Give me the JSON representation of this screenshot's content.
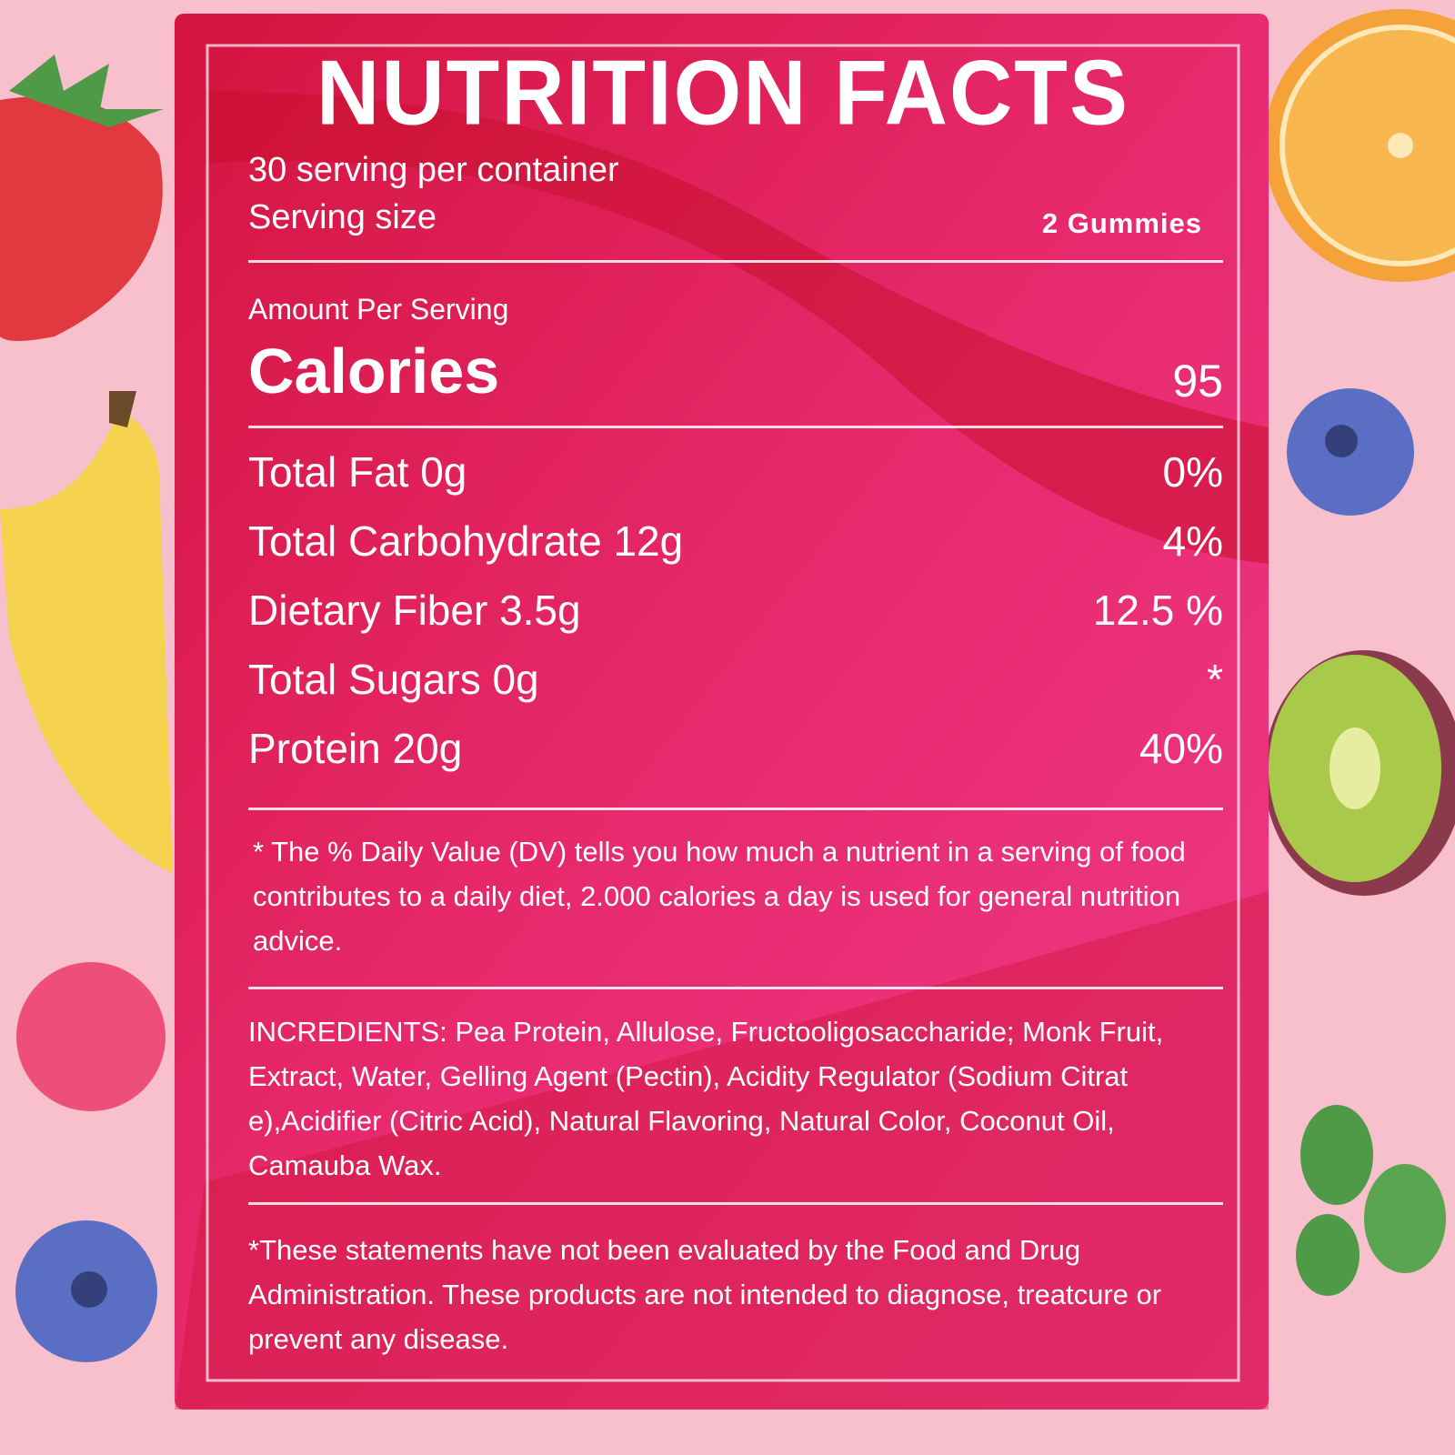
{
  "title": "NUTRITION FACTS",
  "servings_per_container": "30 serving per container",
  "serving_size": {
    "label": "Serving size",
    "value": "2 Gummies"
  },
  "amount_per_serving": "Amount Per Serving",
  "calories": {
    "label": "Calories",
    "value": "95"
  },
  "nutrients": [
    {
      "label": "Total Fat 0g",
      "dv": "0%"
    },
    {
      "label": "Total Carbohydrate 12g",
      "dv": "4%"
    },
    {
      "label": "Dietary Fiber 3.5g",
      "dv": "12.5 %"
    },
    {
      "label": "Total Sugars 0g",
      "dv": "*"
    },
    {
      "label": "Protein 20g",
      "dv": "40%"
    }
  ],
  "footnote": "* The % Daily Value (DV) tells you how much a nutrient in a serving of food contributes to a daily diet, 2.000 calories a day is used for general nutrition advice.",
  "ingredients": {
    "label": "INCREDIENTS:",
    "text": "Pea Protein, Allulose, Fructooligosaccharide; Monk Fruit, Extract, Water, Gelling Agent (Pectin), Acidity Regulator (Sodium Citrat e),Acidifier (Citric Acid), Natural Flavoring, Natural Color, Coconut Oil, Camauba Wax."
  },
  "disclaimer": "*These statements have not been evaluated by the Food and Drug Administration. These products are not intended to diagnose, treatcure or prevent any disease."
}
